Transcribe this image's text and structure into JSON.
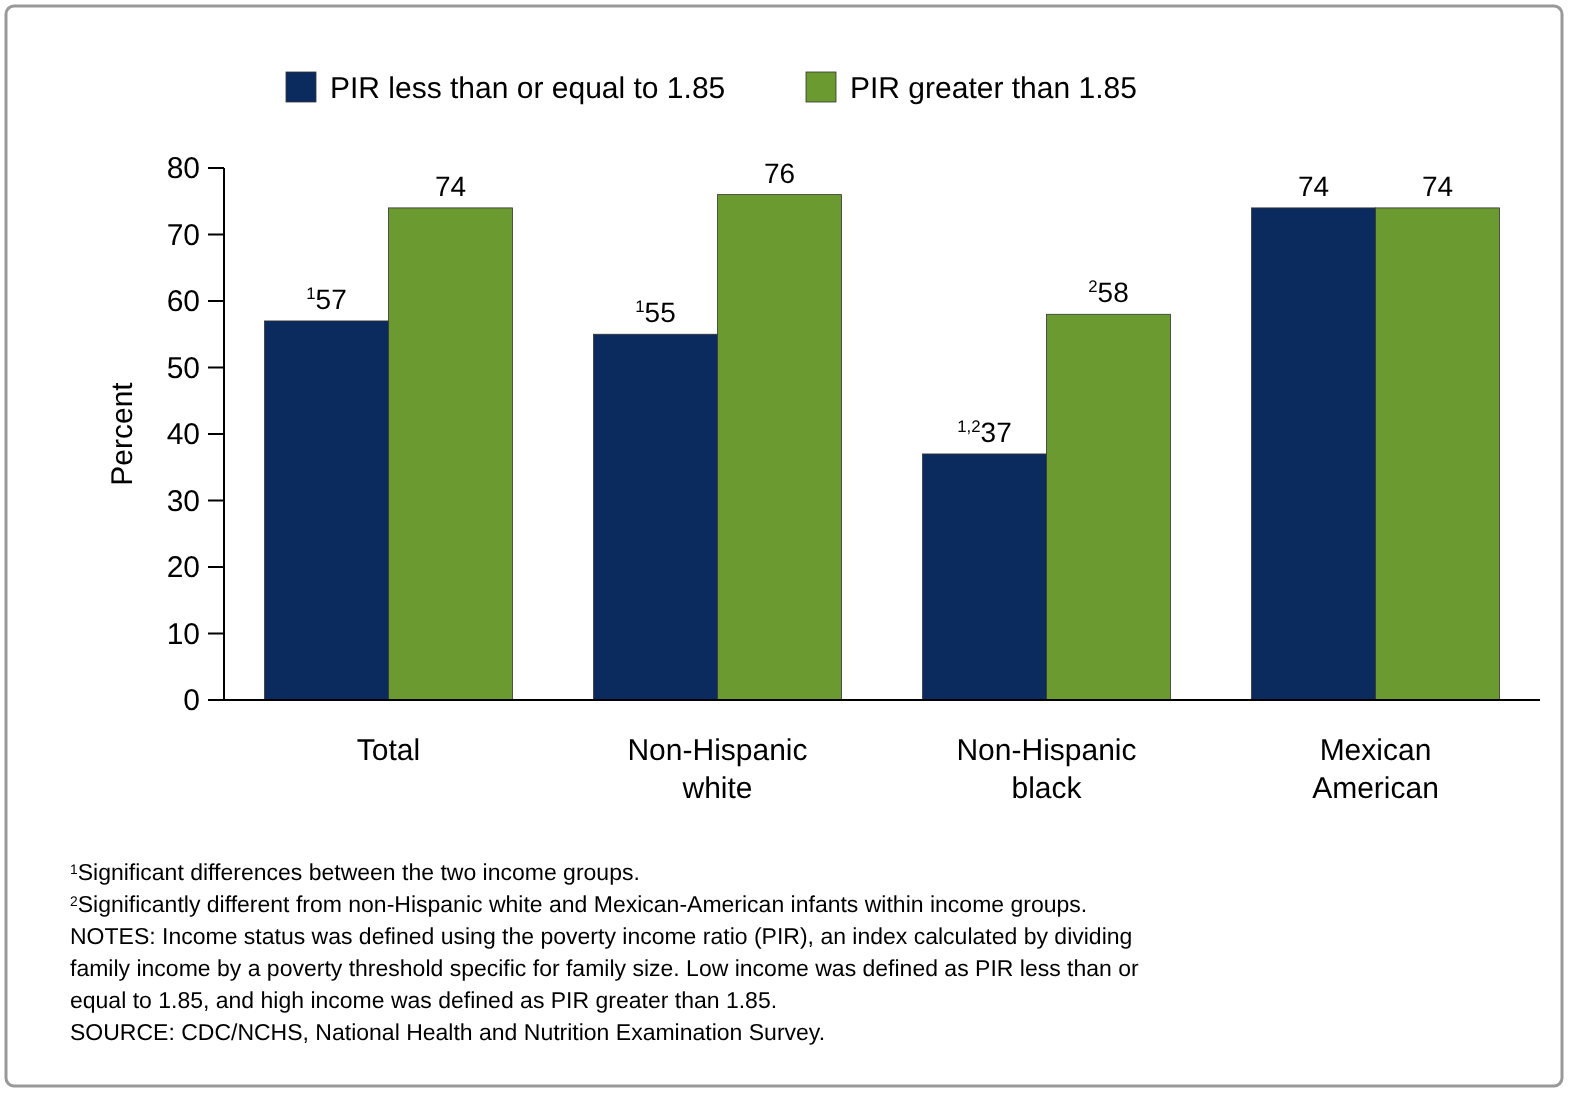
{
  "chart_data": {
    "type": "bar",
    "ylabel": "Percent",
    "categories": [
      "Total",
      "Non-Hispanic white",
      "Non-Hispanic black",
      "Mexican American"
    ],
    "series": [
      {
        "name": "PIR less than or equal to 1.85",
        "color": "#0b2a5e",
        "values": [
          57,
          55,
          37,
          74
        ],
        "value_labels": [
          "$^{1}$57",
          "$^{1}$55",
          "$^{1,2}$37",
          "74"
        ]
      },
      {
        "name": "PIR greater than 1.85",
        "color": "#6b9b30",
        "values": [
          74,
          76,
          58,
          74
        ],
        "value_labels": [
          "74",
          "76",
          "$^{2}$58",
          "74"
        ]
      }
    ],
    "ylim": [
      0,
      80
    ],
    "yticks": [
      0,
      10,
      20,
      30,
      40,
      50,
      60,
      70,
      80
    ],
    "grid": false,
    "legend": "top",
    "annotations": [
      "$^{1}$Significant differences between the two income groups.",
      "$^{2}$Significantly different from non-Hispanic white and Mexican-American infants within income groups.",
      "NOTES: Income status was defined using the poverty income ratio (PIR), an index calculated by dividing family income by a poverty threshold specific for family size.  Low income was defined as PIR less than or equal to 1.85, and high income was defined as PIR greater than 1.85.",
      "SOURCE: CDC/NCHS, National Health and Nutrition Examination Survey."
    ]
  }
}
